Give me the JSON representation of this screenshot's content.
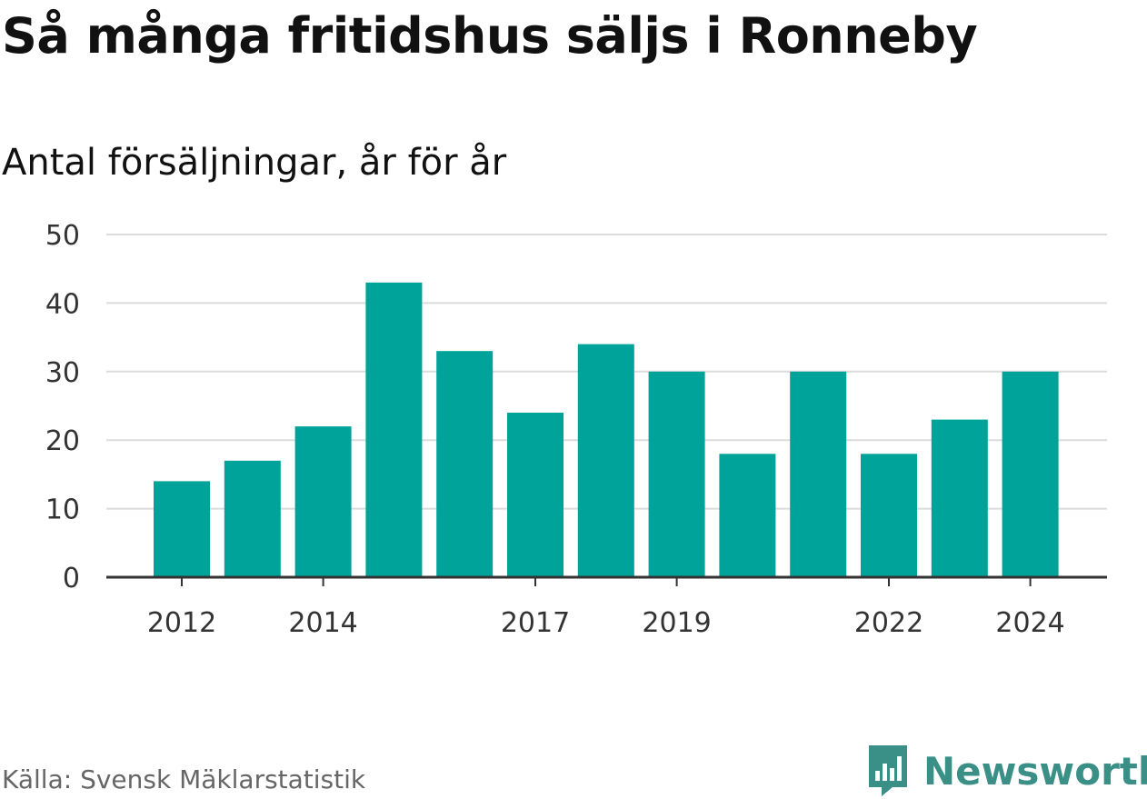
{
  "chart_data": {
    "type": "bar",
    "title": "Så många fritidshus säljs i Ronneby",
    "subtitle": "Antal försäljningar, år för år",
    "xlabel": "",
    "ylabel": "",
    "categories": [
      "2012",
      "2013",
      "2014",
      "2015",
      "2016",
      "2017",
      "2018",
      "2019",
      "2020",
      "2021",
      "2022",
      "2023",
      "2024"
    ],
    "values": [
      14,
      17,
      22,
      43,
      33,
      24,
      34,
      30,
      18,
      30,
      18,
      23,
      30
    ],
    "x_tick_labels": [
      "2012",
      "2014",
      "2017",
      "2019",
      "2022",
      "2024"
    ],
    "y_ticks": [
      0,
      10,
      20,
      30,
      40,
      50
    ],
    "ylim": [
      0,
      50
    ],
    "grid": true,
    "bar_color": "#00a39a",
    "grid_color": "#dcdcdc",
    "axis_color": "#333333"
  },
  "source": "Källa: Svensk Mäklarstatistik",
  "brand": {
    "name": "Newsworthy",
    "icon": "newsworthy-logo-icon",
    "color": "#3a8f86"
  }
}
